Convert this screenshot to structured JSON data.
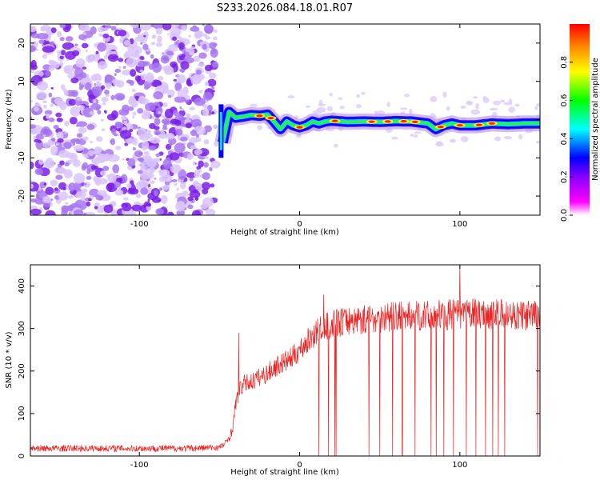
{
  "title": "S233.2026.084.18.01.R07",
  "colors": {
    "snr_line": "#ee2222",
    "noise": "#9955ee",
    "colormap": [
      "#ffffff",
      "#ff00ff",
      "#8800ff",
      "#0000ff",
      "#00ffff",
      "#00ff00",
      "#ffff00",
      "#ff0000"
    ]
  },
  "chart_data": [
    {
      "type": "heatmap",
      "name": "spectrogram",
      "xlabel": "Height of straight line (km)",
      "ylabel": "Frequency (Hz)",
      "xlim": [
        -168,
        150
      ],
      "ylim": [
        -25,
        25
      ],
      "xticks": [
        -100,
        0,
        100
      ],
      "yticks": [
        -20,
        -10,
        0,
        10,
        20
      ],
      "noise_region_x": [
        -168,
        -52
      ],
      "signal_onset_x": -48,
      "ridge": {
        "x": [
          -48,
          -44,
          -40,
          -35,
          -30,
          -25,
          -20,
          -16,
          -12,
          -8,
          -4,
          0,
          4,
          8,
          12,
          16,
          20,
          30,
          40,
          50,
          60,
          70,
          80,
          85,
          90,
          95,
          100,
          110,
          120,
          130,
          140,
          150
        ],
        "freq": [
          -6,
          2,
          0.5,
          0.8,
          1.2,
          1.0,
          1.3,
          -0.5,
          -2.5,
          -0.5,
          -1.5,
          -2.0,
          -1.5,
          -0.5,
          -1.0,
          -0.5,
          -0.3,
          -0.6,
          -0.5,
          -0.6,
          -0.4,
          -0.5,
          -1.0,
          -2.5,
          -1.5,
          -1.0,
          -1.5,
          -1.5,
          -1.0,
          -1.2,
          -1.0,
          -1.0
        ]
      },
      "colorbar": {
        "label": "Normalized spectral amplitude",
        "range": [
          0,
          1
        ],
        "ticks": [
          "0.0",
          "0.2",
          "0.4",
          "0.6",
          "0.8"
        ]
      }
    },
    {
      "type": "line",
      "name": "snr",
      "xlabel": "Height of straight line (km)",
      "ylabel": "SNR (10 * v/v)",
      "xlim": [
        -168,
        150
      ],
      "ylim": [
        0,
        450
      ],
      "xticks": [
        -100,
        0,
        100
      ],
      "yticks": [
        0,
        100,
        200,
        300,
        400
      ],
      "series": [
        {
          "name": "SNR",
          "x": [
            -168,
            -150,
            -130,
            -110,
            -90,
            -70,
            -50,
            -46,
            -42,
            -40,
            -38,
            -35,
            -30,
            -25,
            -20,
            -15,
            -10,
            -5,
            0,
            5,
            10,
            15,
            20,
            25,
            30,
            40,
            50,
            60,
            70,
            80,
            90,
            100,
            110,
            120,
            130,
            140,
            150
          ],
          "values": [
            18,
            18,
            18,
            18,
            18,
            18,
            20,
            30,
            60,
            120,
            150,
            170,
            175,
            185,
            195,
            210,
            220,
            230,
            250,
            270,
            290,
            300,
            310,
            315,
            318,
            322,
            325,
            328,
            330,
            330,
            332,
            335,
            336,
            334,
            332,
            330,
            330
          ],
          "noise_amplitude": 8
        }
      ],
      "spikes": [
        {
          "x": -38,
          "value": 290
        },
        {
          "x": 15,
          "value": 380
        },
        {
          "x": 100,
          "value": 450
        },
        {
          "x": 150,
          "value": 370
        }
      ],
      "dropouts_x": [
        12,
        18,
        22,
        50,
        58,
        64,
        72,
        82,
        90,
        96,
        104,
        110,
        116,
        124,
        128
      ]
    }
  ]
}
